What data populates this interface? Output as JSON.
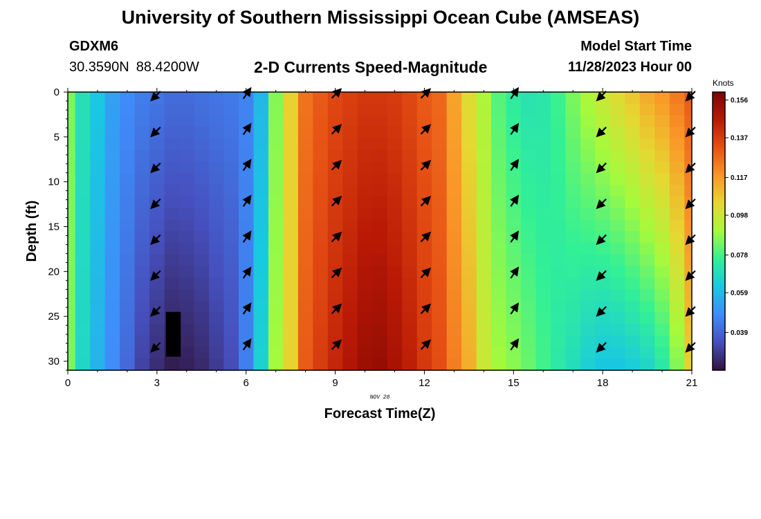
{
  "header": {
    "title": "University of Southern Mississippi Ocean Cube (AMSEAS)",
    "station_id": "GDXM6",
    "lat": "30.3590N",
    "lon": "88.4200W",
    "plot_title": "2-D Currents Speed-Magnitude",
    "model_start_label": "Model Start Time",
    "model_start_value": "11/28/2023 Hour 00"
  },
  "footer": {
    "title": "University of Southern Mississippi Ocean Cube (AMSEAS)"
  },
  "chart_data": {
    "type": "heatmap",
    "title": "2-D Currents Speed-Magnitude",
    "xlabel": "Forecast Time(Z)",
    "ylabel": "Depth (ft)",
    "date_label": "NOV 28",
    "xlim": [
      0,
      21
    ],
    "ylim": [
      31,
      0
    ],
    "x_ticks": [
      0,
      3,
      6,
      9,
      12,
      15,
      18,
      21
    ],
    "y_ticks": [
      0,
      5,
      10,
      15,
      20,
      25,
      30
    ],
    "colorbar": {
      "unit": "Knots",
      "min": 0.02,
      "max": 0.16,
      "ticks": [
        "0.156",
        "0.137",
        "0.117",
        "0.098",
        "0.078",
        "0.059",
        "0.039"
      ]
    },
    "speed_profile": {
      "hours": [
        0,
        0.5,
        1,
        1.5,
        2,
        2.5,
        3,
        3.5,
        4,
        4.5,
        5,
        5.5,
        6,
        6.5,
        7,
        7.5,
        8,
        8.5,
        9,
        9.5,
        10,
        10.5,
        11,
        11.5,
        12,
        12.5,
        13,
        13.5,
        14,
        14.5,
        15,
        15.5,
        16,
        16.5,
        17,
        17.5,
        18,
        18.5,
        19,
        19.5,
        20,
        20.5,
        21
      ],
      "surface_knots": [
        0.085,
        0.07,
        0.062,
        0.053,
        0.048,
        0.045,
        0.043,
        0.041,
        0.041,
        0.042,
        0.043,
        0.044,
        0.046,
        0.058,
        0.086,
        0.105,
        0.125,
        0.13,
        0.134,
        0.136,
        0.138,
        0.138,
        0.137,
        0.134,
        0.13,
        0.127,
        0.115,
        0.102,
        0.092,
        0.08,
        0.074,
        0.071,
        0.072,
        0.077,
        0.085,
        0.092,
        0.098,
        0.103,
        0.108,
        0.114,
        0.118,
        0.124,
        0.13
      ],
      "bottom_knots": [
        0.085,
        0.067,
        0.057,
        0.048,
        0.04,
        0.031,
        0.026,
        0.022,
        0.023,
        0.025,
        0.029,
        0.033,
        0.045,
        0.065,
        0.09,
        0.105,
        0.13,
        0.137,
        0.143,
        0.148,
        0.153,
        0.154,
        0.15,
        0.145,
        0.138,
        0.133,
        0.123,
        0.113,
        0.098,
        0.09,
        0.087,
        0.083,
        0.078,
        0.073,
        0.069,
        0.064,
        0.061,
        0.061,
        0.063,
        0.066,
        0.072,
        0.085,
        0.105
      ]
    },
    "missing_blocks": [
      {
        "x_start": 3.3,
        "x_end": 3.8,
        "depth_top": 24.5,
        "depth_bottom": 29.5
      }
    ],
    "arrows": {
      "hours": [
        3,
        6,
        9,
        12,
        15,
        18,
        21
      ],
      "depths": [
        0,
        4,
        8,
        12,
        16,
        20,
        24,
        28
      ],
      "directions_deg": [
        225,
        55,
        45,
        45,
        55,
        225,
        225
      ]
    }
  }
}
